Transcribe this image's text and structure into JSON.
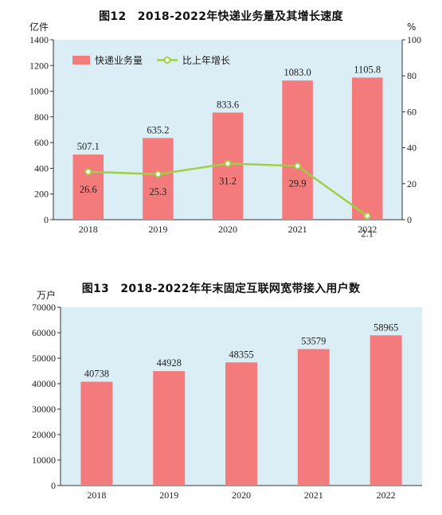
{
  "colors": {
    "panel_bg": "#dbeef6",
    "bar": "#f47b7c",
    "line": "#9fcf45",
    "axis": "#333333"
  },
  "chart_data": [
    {
      "type": "bar",
      "title": "图12　2018-2022年快递业务量及其增长速度",
      "y_unit": "亿件",
      "y2_unit": "%",
      "categories": [
        "2018",
        "2019",
        "2020",
        "2021",
        "2022"
      ],
      "ylim": [
        0,
        1400
      ],
      "yticks": [
        0,
        200,
        400,
        600,
        800,
        1000,
        1200,
        1400
      ],
      "y2lim": [
        0,
        100
      ],
      "y2ticks": [
        0,
        20,
        40,
        60,
        80,
        100
      ],
      "legend_position": "top-left",
      "series": [
        {
          "name": "快递业务量",
          "kind": "bar",
          "axis": "left",
          "values": [
            507.1,
            635.2,
            833.6,
            1083.0,
            1105.8
          ],
          "labels": [
            "507.1",
            "635.2",
            "833.6",
            "1083.0",
            "1105.8"
          ]
        },
        {
          "name": "比上年增长",
          "kind": "line",
          "axis": "right",
          "values": [
            26.6,
            25.3,
            31.2,
            29.9,
            2.1
          ],
          "labels": [
            "26.6",
            "25.3",
            "31.2",
            "29.9",
            "2.1"
          ]
        }
      ]
    },
    {
      "type": "bar",
      "title": "图13　2018-2022年年末固定互联网宽带接入用户数",
      "y_unit": "万户",
      "categories": [
        "2018",
        "2019",
        "2020",
        "2021",
        "2022"
      ],
      "ylim": [
        0,
        70000
      ],
      "yticks": [
        0,
        10000,
        20000,
        30000,
        40000,
        50000,
        60000,
        70000
      ],
      "series": [
        {
          "kind": "bar",
          "values": [
            40738,
            44928,
            48355,
            53579,
            58965
          ],
          "labels": [
            "40738",
            "44928",
            "48355",
            "53579",
            "58965"
          ]
        }
      ]
    }
  ]
}
